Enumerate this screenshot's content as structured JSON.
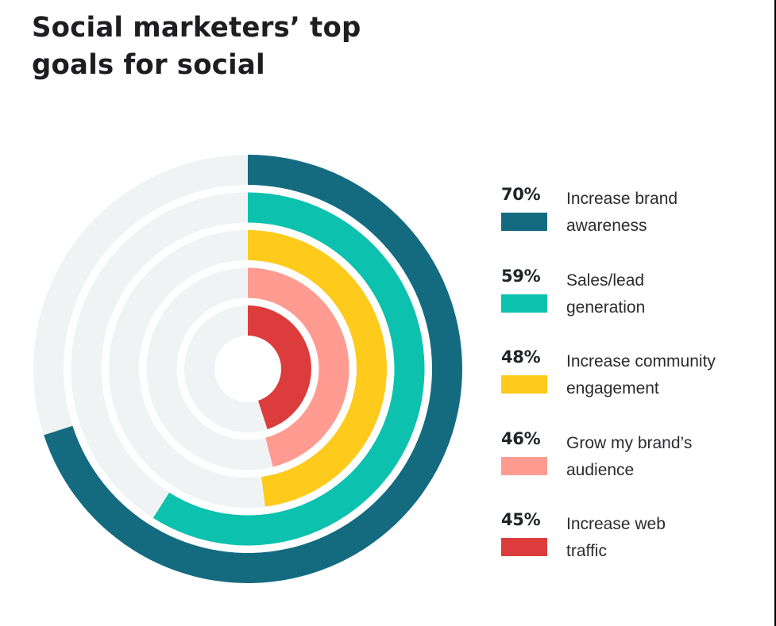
{
  "title": {
    "line1": "Social marketers’ top",
    "line2": "goals for social"
  },
  "colors": {
    "track": "#eff3f4",
    "ring_1": "#146b80",
    "ring_2": "#0cc2ae",
    "ring_3": "#fecb1c",
    "ring_4": "#ff9b90",
    "ring_5": "#dc3c3c",
    "text": "#1e1d21"
  },
  "legend": [
    {
      "pct": "70%",
      "line1": "Increase brand",
      "line2": "awareness",
      "color": "#146b80"
    },
    {
      "pct": "59%",
      "line1": "Sales/lead",
      "line2": "generation",
      "color": "#0cc2ae"
    },
    {
      "pct": "48%",
      "line1": "Increase community",
      "line2": "engagement",
      "color": "#fecb1c"
    },
    {
      "pct": "46%",
      "line1": "Grow my brand’s",
      "line2": "audience",
      "color": "#ff9b90"
    },
    {
      "pct": "45%",
      "line1": "Increase web",
      "line2": "traffic",
      "color": "#dc3c3c"
    }
  ],
  "chart_data": {
    "type": "radial-bar",
    "title": "Social marketers’ top goals for social",
    "categories": [
      "Increase brand awareness",
      "Sales/lead generation",
      "Increase community engagement",
      "Grow my brand’s audience",
      "Increase web traffic"
    ],
    "values": [
      70,
      59,
      48,
      46,
      45
    ],
    "unit": "%",
    "max": 100,
    "colors": [
      "#146b80",
      "#0cc2ae",
      "#fecb1c",
      "#ff9b90",
      "#dc3c3c"
    ],
    "legend_position": "right",
    "grid": false
  }
}
